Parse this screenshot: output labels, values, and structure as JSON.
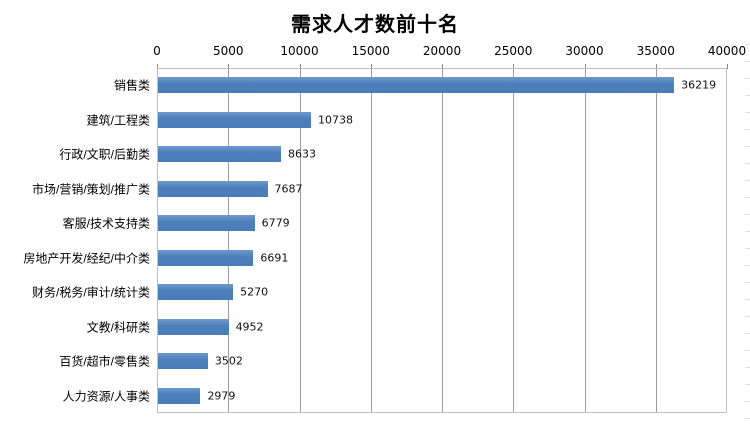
{
  "chart_data": {
    "type": "bar",
    "orientation": "horizontal",
    "title": "需求人才数前十名",
    "categories": [
      "销售类",
      "建筑/工程类",
      "行政/文职/后勤类",
      "市场/营销/策划/推广类",
      "客服/技术支持类",
      "房地产开发/经纪/中介类",
      "财务/税务/审计/统计类",
      "文教/科研类",
      "百货/超市/零售类",
      "人力资源/人事类"
    ],
    "values": [
      36219,
      10738,
      8633,
      7687,
      6779,
      6691,
      5270,
      4952,
      3502,
      2979
    ],
    "data_labels": [
      "36219",
      "10738",
      "8633",
      "7687",
      "6779",
      "6691",
      "5270",
      "4952",
      "3502",
      "2979"
    ],
    "x_ticks": [
      "0",
      "5000",
      "10000",
      "15000",
      "20000",
      "25000",
      "30000",
      "35000",
      "40000"
    ],
    "xlim": [
      0,
      40000
    ],
    "xlabel": "",
    "ylabel": "",
    "legend": "none",
    "grid": "vertical-major",
    "value_axis_position": "top",
    "bar_color": "#4d80bc",
    "gridline_color": "#9d9d9d",
    "plot_border_color": "#bfbfbf",
    "title_color": "#000000",
    "background_color": "#ffffff"
  }
}
